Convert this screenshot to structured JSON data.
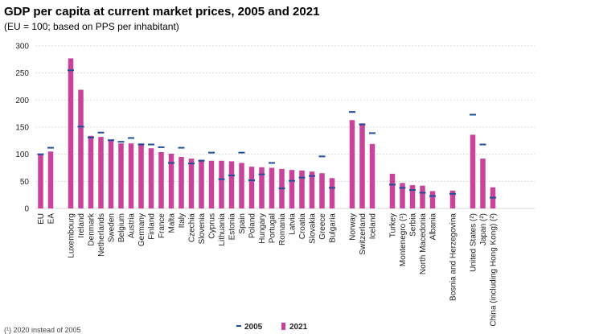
{
  "chart_data": {
    "type": "bar",
    "title": "GDP per capita at current market prices, 2005 and 2021",
    "subtitle": "(EU = 100; based on PPS per inhabitant)",
    "xlabel": "",
    "ylabel": "",
    "ylim": [
      0,
      300
    ],
    "yticks": [
      "0",
      "50",
      "100",
      "150",
      "200",
      "250",
      "300"
    ],
    "grid": true,
    "legend": {
      "position": "bottom-center",
      "entries": [
        {
          "name": "2005",
          "marker": "dash",
          "color": "#1f4e9b"
        },
        {
          "name": "2021",
          "marker": "bar",
          "color": "#c8439a"
        }
      ]
    },
    "colors": {
      "bar_2021": "#c8439a",
      "marker_2005": "#1f4e9b",
      "grid": "#d9d9d9"
    },
    "categories": [
      "EU",
      "EA",
      "",
      "Luxembourg",
      "Ireland",
      "Denmark",
      "Netherlands",
      "Sweden",
      "Belgium",
      "Austria",
      "Germany",
      "Finland",
      "France",
      "Malta",
      "Italy",
      "Czechia",
      "Slovenia",
      "Cyprus",
      "Lithuania",
      "Estonia",
      "Spain",
      "Poland",
      "Hungary",
      "Portugal",
      "Romania",
      "Latvia",
      "Croatia",
      "Slovakia",
      "Greece",
      "Bulgaria",
      "",
      "Norway",
      "Switzerland",
      "Iceland",
      "",
      "Turkey",
      "Montenegro (¹)",
      "Serbia",
      "North Macedonia",
      "Albania",
      "",
      "Bosnia and Herzegovina",
      "",
      "United States (²)",
      "Japan (²)",
      "China (including Hong Kong) (²)"
    ],
    "series": [
      {
        "name": "2005",
        "values": [
          100,
          112,
          null,
          255,
          151,
          131,
          140,
          126,
          123,
          130,
          118,
          118,
          113,
          84,
          112,
          83,
          88,
          103,
          54,
          61,
          103,
          52,
          63,
          84,
          37,
          51,
          57,
          60,
          96,
          38,
          null,
          178,
          155,
          139,
          null,
          44,
          38,
          34,
          29,
          23,
          null,
          27,
          null,
          173,
          118,
          20
        ]
      },
      {
        "name": "2021",
        "values": [
          100,
          105,
          null,
          277,
          219,
          134,
          132,
          125,
          120,
          120,
          120,
          111,
          104,
          101,
          95,
          92,
          90,
          88,
          88,
          87,
          84,
          77,
          76,
          75,
          73,
          71,
          70,
          68,
          65,
          56,
          null,
          163,
          157,
          119,
          null,
          64,
          47,
          43,
          42,
          32,
          null,
          33,
          null,
          136,
          92,
          39
        ]
      }
    ]
  },
  "footnote": "(¹) 2020 instead of 2005"
}
